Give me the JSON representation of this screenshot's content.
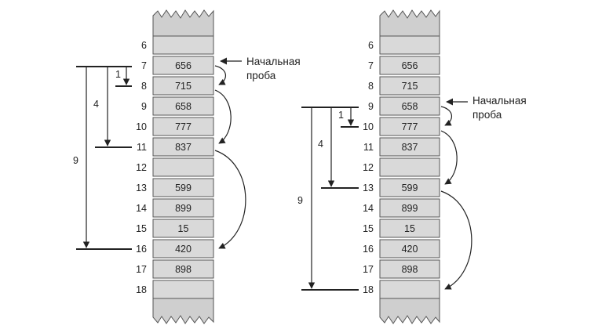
{
  "left": {
    "rows": [
      {
        "index": "6",
        "value": ""
      },
      {
        "index": "7",
        "value": "656"
      },
      {
        "index": "8",
        "value": "715"
      },
      {
        "index": "9",
        "value": "658"
      },
      {
        "index": "10",
        "value": "777"
      },
      {
        "index": "11",
        "value": "837"
      },
      {
        "index": "12",
        "value": ""
      },
      {
        "index": "13",
        "value": "599"
      },
      {
        "index": "14",
        "value": "899"
      },
      {
        "index": "15",
        "value": "15"
      },
      {
        "index": "16",
        "value": "420"
      },
      {
        "index": "17",
        "value": "898"
      },
      {
        "index": "18",
        "value": ""
      }
    ],
    "probe_label": [
      "Начальная",
      "проба"
    ],
    "steps": [
      "1",
      "4",
      "9"
    ]
  },
  "right": {
    "rows": [
      {
        "index": "6",
        "value": ""
      },
      {
        "index": "7",
        "value": "656"
      },
      {
        "index": "8",
        "value": "715"
      },
      {
        "index": "9",
        "value": "658"
      },
      {
        "index": "10",
        "value": "777"
      },
      {
        "index": "11",
        "value": "837"
      },
      {
        "index": "12",
        "value": ""
      },
      {
        "index": "13",
        "value": "599"
      },
      {
        "index": "14",
        "value": "899"
      },
      {
        "index": "15",
        "value": "15"
      },
      {
        "index": "16",
        "value": "420"
      },
      {
        "index": "17",
        "value": "898"
      },
      {
        "index": "18",
        "value": ""
      }
    ],
    "probe_label": [
      "Начальная",
      "проба"
    ],
    "steps": [
      "1",
      "4",
      "9"
    ]
  },
  "colors": {
    "cell_fill": "#d9d9d9",
    "stroke": "#555555",
    "ink": "#222222"
  }
}
